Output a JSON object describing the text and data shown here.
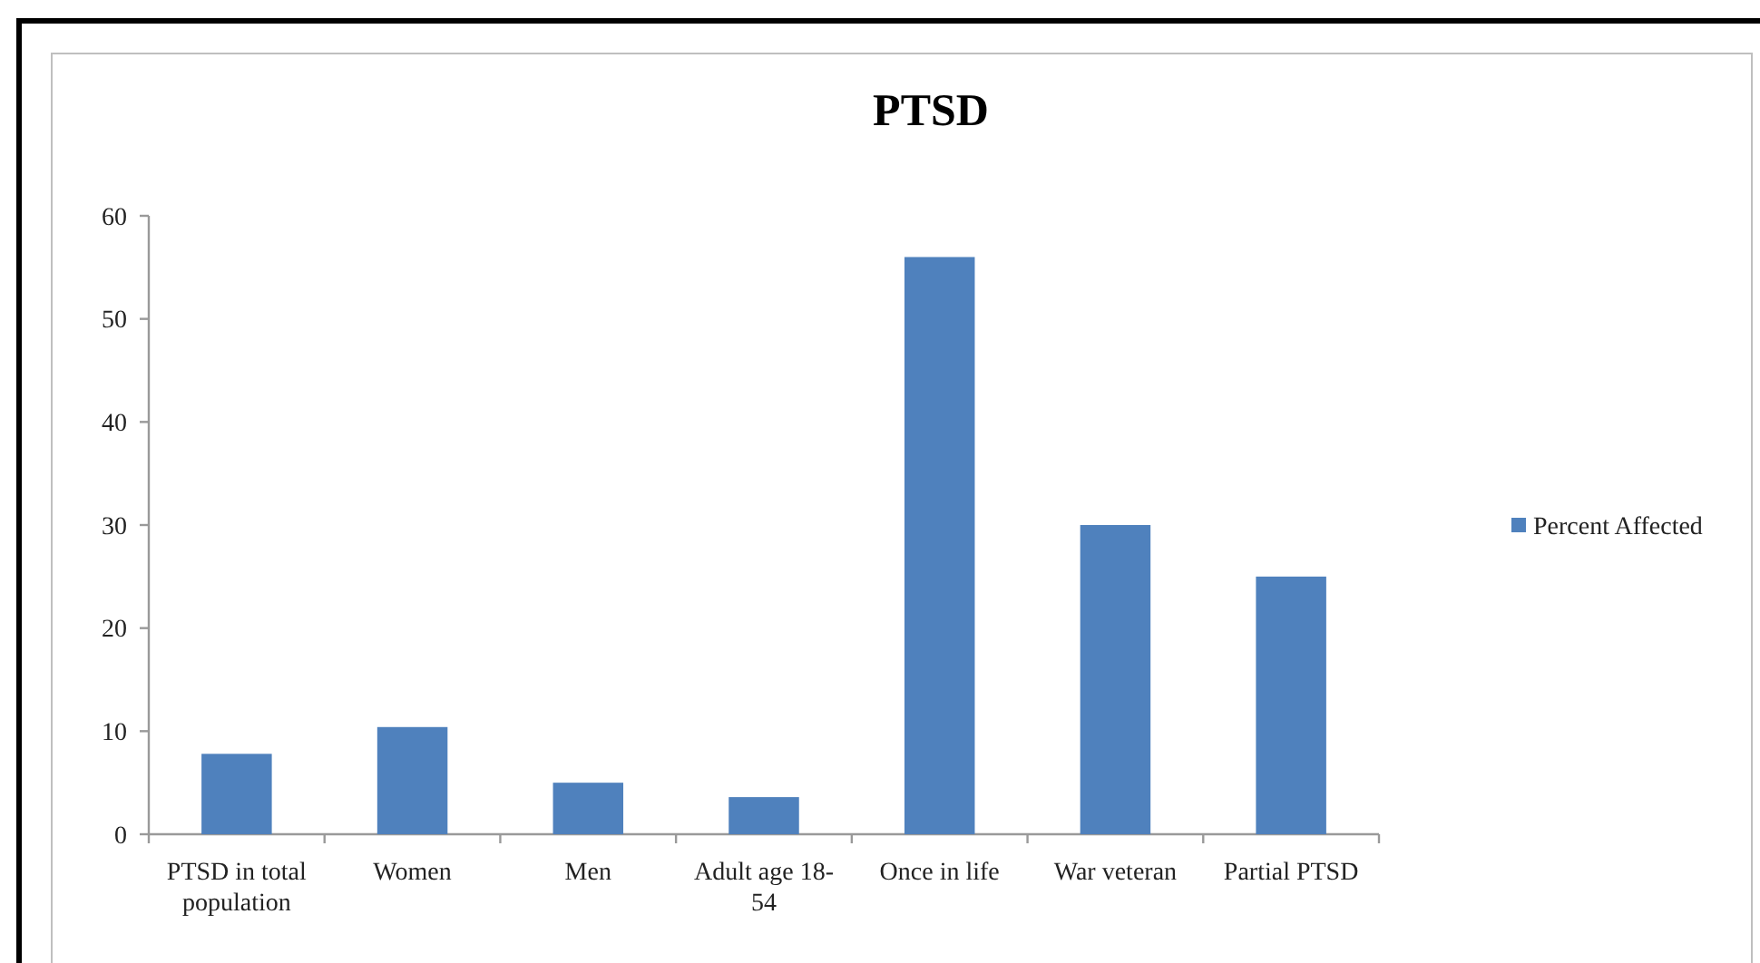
{
  "chart_data": {
    "type": "bar",
    "title": "PTSD",
    "categories": [
      "PTSD in total population",
      "Women",
      "Men",
      "Adult age 18-54",
      "Once in life",
      "War veteran",
      "Partial PTSD"
    ],
    "series": [
      {
        "name": "Percent Affected",
        "color": "#4f81bd",
        "values": [
          7.8,
          10.4,
          5,
          3.6,
          56,
          30,
          25
        ]
      }
    ],
    "ylim": [
      0,
      60
    ],
    "yticks": [
      0,
      10,
      20,
      30,
      40,
      50,
      60
    ],
    "legend": "right"
  }
}
